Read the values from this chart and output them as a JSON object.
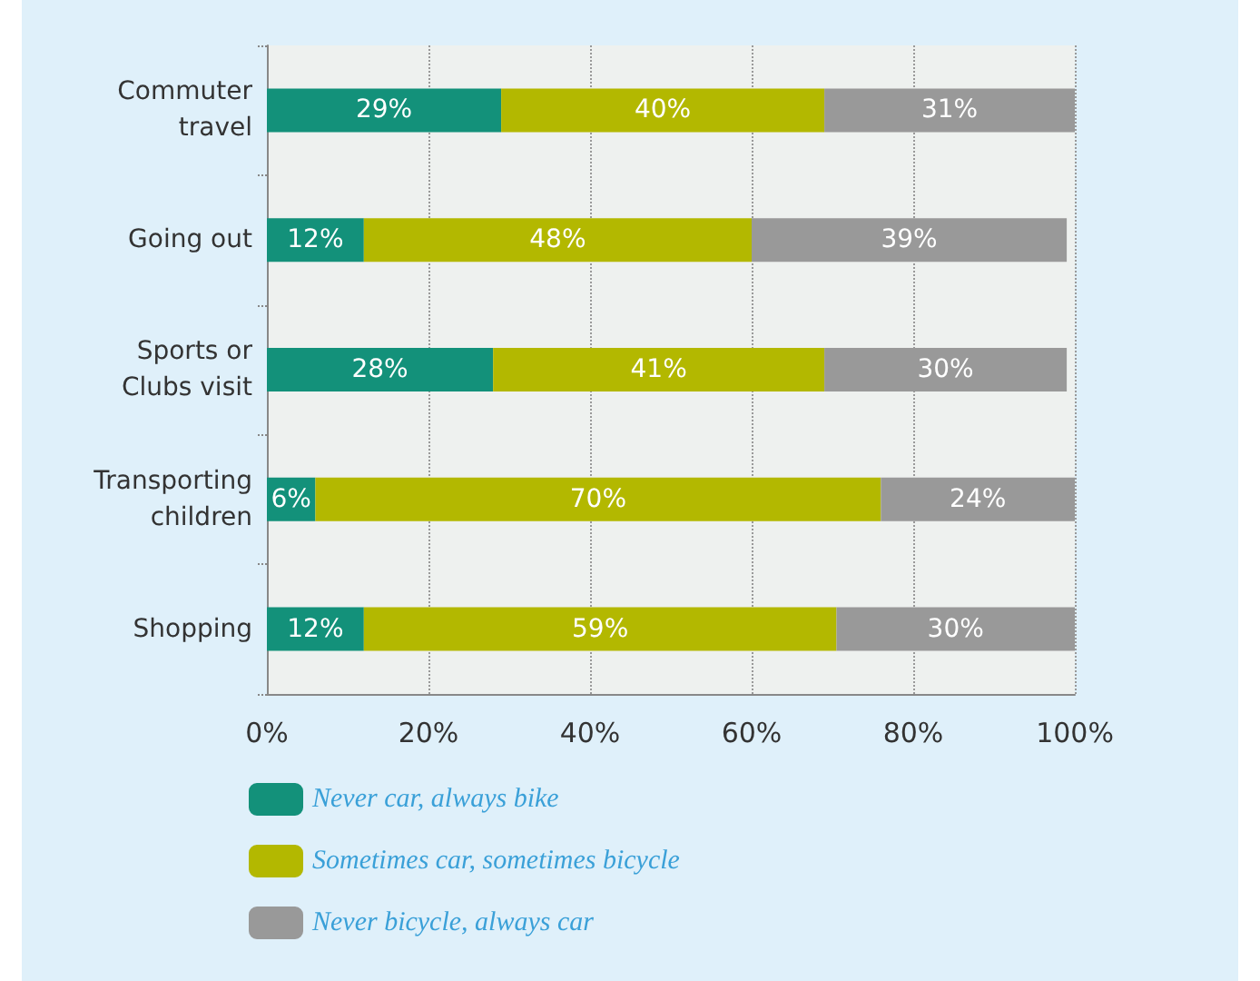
{
  "chart_data": {
    "type": "bar",
    "orientation": "horizontal",
    "stacked": true,
    "categories": [
      "Commuter\ntravel",
      "Going out",
      "Sports or\nClubs visit",
      "Transporting\nchildren",
      "Shopping"
    ],
    "series": [
      {
        "name": "Never car, always bike",
        "color": "#13917a",
        "values": [
          29,
          12,
          28,
          6,
          12
        ],
        "value_labels": [
          "29%",
          "12%",
          "28%",
          "6%",
          "12%"
        ]
      },
      {
        "name": "Sometimes car, sometimes bicycle",
        "color": "#b3b800",
        "values": [
          40,
          48,
          41,
          70,
          58.5
        ],
        "value_labels": [
          "40%",
          "48%",
          "41%",
          "70%",
          "59%"
        ]
      },
      {
        "name": "Never bicycle, always car",
        "color": "#999999",
        "values": [
          31,
          39,
          30,
          24,
          29.5
        ],
        "value_labels": [
          "31%",
          "39%",
          "30%",
          "24%",
          "30%"
        ]
      }
    ],
    "xlim": [
      0,
      100
    ],
    "xticks": [
      {
        "value": 0,
        "label": "0%"
      },
      {
        "value": 20,
        "label": "20%"
      },
      {
        "value": 40,
        "label": "40%"
      },
      {
        "value": 60,
        "label": "60%"
      },
      {
        "value": 80,
        "label": "80%"
      },
      {
        "value": 100,
        "label": "100%"
      }
    ],
    "grid": "x",
    "legend": "bottom left"
  }
}
